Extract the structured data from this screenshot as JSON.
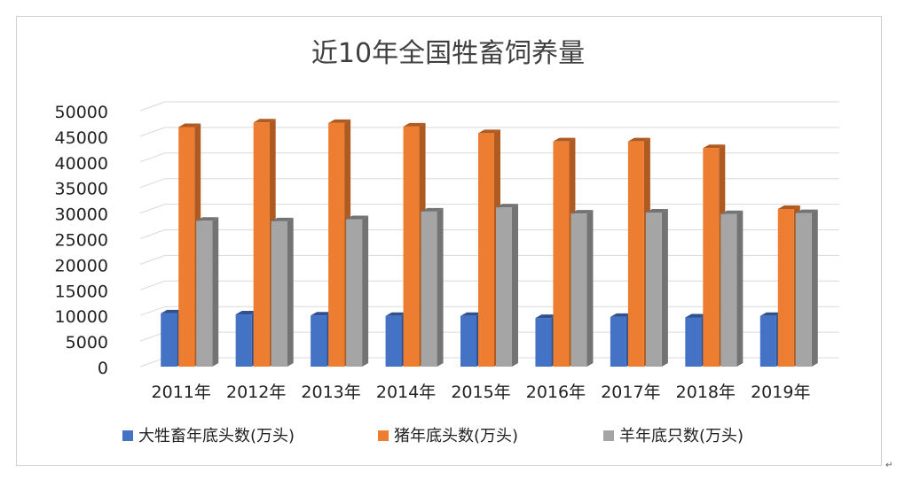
{
  "colors": {
    "series": [
      "#4472C4",
      "#ED7D31",
      "#A5A5A5"
    ],
    "series_dark": [
      "#2F528F",
      "#AE5A21",
      "#737373"
    ],
    "grid": "#D9D9D9",
    "text": "#404040"
  },
  "corner_mark": "↵",
  "chart_data": {
    "type": "bar",
    "style": "3d-clustered-column",
    "title": "近10年全国牲畜饲养量",
    "xlabel": "",
    "ylabel": "",
    "ylim": [
      0,
      50000
    ],
    "yticks": [
      0,
      5000,
      10000,
      15000,
      20000,
      25000,
      30000,
      35000,
      40000,
      45000,
      50000
    ],
    "grid": true,
    "legend_position": "bottom",
    "categories": [
      "2011年",
      "2012年",
      "2013年",
      "2014年",
      "2015年",
      "2016年",
      "2017年",
      "2018年",
      "2019年"
    ],
    "series": [
      {
        "name": "大牲畜年底头数(万头)",
        "values": [
          10400,
          10200,
          10000,
          9900,
          9900,
          9500,
          9700,
          9600,
          9900
        ]
      },
      {
        "name": "猪年底头数(万头)",
        "values": [
          46800,
          47700,
          47600,
          46900,
          45600,
          44000,
          44000,
          42700,
          30800
        ]
      },
      {
        "name": "羊年底只数(万头)",
        "values": [
          28500,
          28400,
          28800,
          30300,
          31100,
          29900,
          30100,
          29800,
          30000
        ]
      }
    ]
  }
}
